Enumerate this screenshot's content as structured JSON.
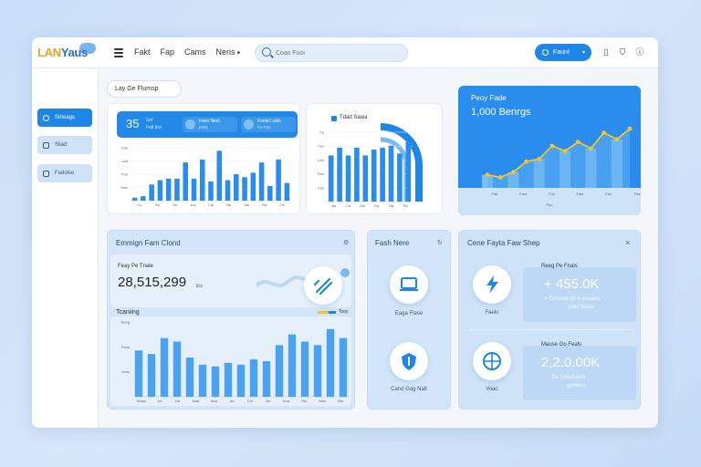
{
  "app": {
    "logo_part1": "LAN",
    "logo_part2": "Yaus"
  },
  "header": {
    "nav": [
      "Fakt",
      "Fap",
      "Cams",
      "Nens"
    ],
    "search_placeholder": "Coas Fuoi",
    "user_label": "Faunt"
  },
  "sidebar": {
    "items": [
      {
        "label": "Sirteags",
        "active": true
      },
      {
        "label": "Sliad",
        "active": false
      },
      {
        "label": "Fadolse",
        "active": false
      }
    ]
  },
  "filter": {
    "label": "Lay Ge Flumsp"
  },
  "stats_strip": {
    "value": "35",
    "value_sub": "Sof",
    "value_sub2": "Falt tiss",
    "cells": [
      {
        "label": "Favo Nest",
        "sub": "Mols"
      },
      {
        "label": "Fonte Lsids",
        "sub": "Fe Pan"
      }
    ]
  },
  "chart_data": [
    {
      "type": "bar",
      "name": "left-bars",
      "ylabels": [
        "Sios",
        "Tmb",
        "1a5",
        "bab"
      ],
      "xlabels": [
        "Co",
        "Sa",
        "Ne",
        "Jus",
        "Cal",
        "Na",
        "Sal",
        "Ra",
        "Oe"
      ],
      "values": [
        2,
        3,
        11,
        14,
        15,
        15,
        26,
        15,
        28,
        13,
        34,
        14,
        18,
        16,
        19,
        26,
        10,
        28,
        12
      ]
    },
    {
      "type": "bar",
      "name": "middle-bars",
      "legend": "Tdad Sawa",
      "ylabels": [
        "Cas",
        "Geo",
        "Cos",
        "Fex",
        "Fa"
      ],
      "xlabels": [
        "Aa",
        "Ca",
        "Mo",
        "Ra",
        "Na",
        "Ra"
      ],
      "values": [
        24,
        28,
        24,
        28,
        24,
        27,
        28,
        29,
        25,
        31
      ]
    },
    {
      "type": "area",
      "name": "right-area",
      "title": "Peoy Fade",
      "subtitle": "1,000 Benrgs",
      "xlabels": [
        "Fatt",
        "Fast",
        "Fali",
        "Faar",
        "Fao",
        "Fas"
      ],
      "footer": "Fuo",
      "values": [
        10,
        8,
        12,
        20,
        22,
        32,
        28,
        35,
        30,
        42,
        37,
        45
      ]
    },
    {
      "type": "bar",
      "name": "bottom-bars",
      "legend": "Tooy",
      "ylabels": [
        "Sons",
        "Russ",
        "Neng"
      ],
      "xlabels": [
        "Rsaui",
        "Jul",
        "Na",
        "Nad",
        "Nua",
        "Aa",
        "Cnl",
        "Ne",
        "Kca",
        "Wo",
        "Nelo",
        "Nta"
      ],
      "values": [
        26,
        24,
        33,
        31,
        22,
        18,
        17,
        19,
        18,
        21,
        20,
        29,
        35,
        31,
        29,
        38,
        33
      ]
    }
  ],
  "panel_earnings": {
    "title": "Emmign Fam Clond",
    "label": "Feay Pe Tnale",
    "value": "28,515,299",
    "unit": "Eis",
    "chart_title": "Tcaniing"
  },
  "panel_features": {
    "title": "Fash Nere",
    "items": [
      "Eaga Flase",
      "Cand Gag Nalt"
    ]
  },
  "panel_stats": {
    "title": "Cene Fayta Faw Shep",
    "rows": [
      {
        "caption": "Reeg Pe Fnals",
        "value": "+ 455.0K",
        "note1": "+ Coonoa ao e-euuaes",
        "note2": "paer feees",
        "icon_label": "Faelo"
      },
      {
        "caption": "Mause Go Feals",
        "value": "2,2.0.00K",
        "note1": "Bo cmemaslh",
        "note2": "gemera",
        "icon_label": "Viiao"
      }
    ]
  },
  "colors": {
    "accent": "#1e86e6",
    "pale": "#d3e5f8",
    "highlight": "#f2c230"
  }
}
